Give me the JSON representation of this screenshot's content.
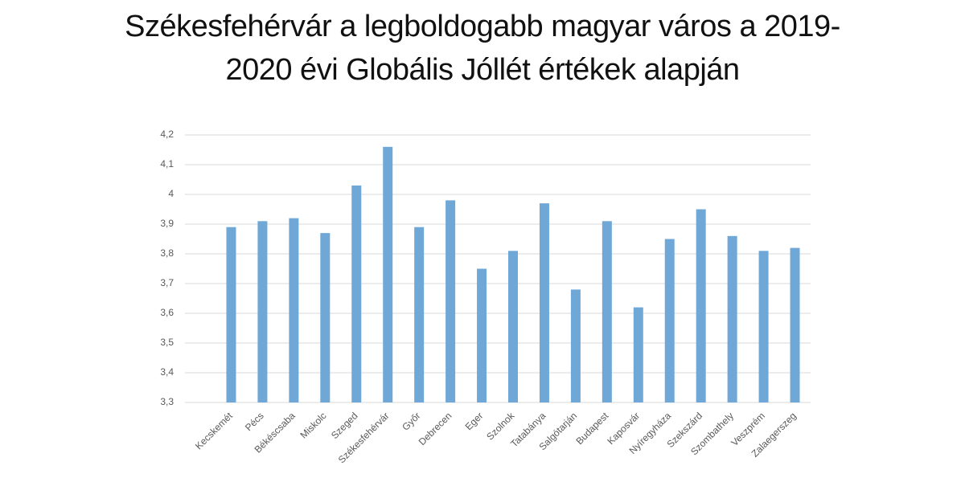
{
  "chart_data": {
    "type": "bar",
    "title": "Székesfehérvár a legboldogabb magyar város a 2019-2020 évi Globális Jóllét értékek alapján",
    "categories": [
      "Kecskemét",
      "Pécs",
      "Békéscsaba",
      "Miskolc",
      "Szeged",
      "Székesfehérvár",
      "Győr",
      "Debrecen",
      "Eger",
      "Szolnok",
      "Tatabánya",
      "Salgótarján",
      "Budapest",
      "Kaposvár",
      "Nyíregyháza",
      "Szekszárd",
      "Szombathely",
      "Veszprém",
      "Zalaegerszeg"
    ],
    "values": [
      3.89,
      3.91,
      3.92,
      3.87,
      4.03,
      4.16,
      3.89,
      3.98,
      3.75,
      3.81,
      3.97,
      3.68,
      3.91,
      3.62,
      3.85,
      3.95,
      3.86,
      3.81,
      3.82
    ],
    "color": "#6fa8d6",
    "ylim": [
      3.3,
      4.2
    ],
    "yticks": [
      {
        "value": 3.3,
        "label": "3,3"
      },
      {
        "value": 3.4,
        "label": "3,4"
      },
      {
        "value": 3.5,
        "label": "3,5"
      },
      {
        "value": 3.6,
        "label": "3,6"
      },
      {
        "value": 3.7,
        "label": "3,7"
      },
      {
        "value": 3.8,
        "label": "3,8"
      },
      {
        "value": 3.9,
        "label": "3,9"
      },
      4,
      {
        "value": 4.1,
        "label": "4,1"
      },
      {
        "value": 4.2,
        "label": "4,2"
      }
    ],
    "grid": true
  }
}
